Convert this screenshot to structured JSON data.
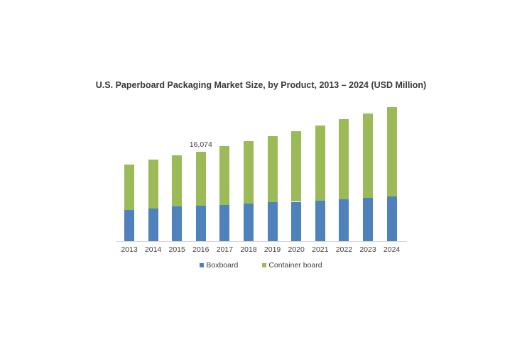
{
  "chart_data": {
    "type": "bar",
    "stacked": true,
    "title": "U.S. Paperboard Packaging Market Size, by Product, 2013 – 2024 (USD Million)",
    "xlabel": "",
    "ylabel": "",
    "categories": [
      "2013",
      "2014",
      "2015",
      "2016",
      "2017",
      "2018",
      "2019",
      "2020",
      "2021",
      "2022",
      "2023",
      "2024"
    ],
    "series": [
      {
        "name": "Boxboard",
        "color": "#4F81BD",
        "values": [
          5615,
          5870,
          6250,
          6380,
          6510,
          6760,
          7020,
          7080,
          7270,
          7530,
          7780,
          8040
        ]
      },
      {
        "name": "Container board",
        "color": "#9BBB59",
        "values": [
          8165,
          8800,
          9190,
          9694,
          10590,
          11230,
          11860,
          12700,
          13530,
          14420,
          15190,
          16080
        ]
      }
    ],
    "annotations": [
      {
        "category": "2016",
        "text": "16,074"
      }
    ],
    "ylim": [
      0,
      25000
    ],
    "grid": false,
    "legend_position": "bottom"
  },
  "legend": {
    "items": [
      {
        "label": "Boxboard"
      },
      {
        "label": "Container board"
      }
    ]
  },
  "labels": {
    "annotation_2016": "16,074"
  }
}
